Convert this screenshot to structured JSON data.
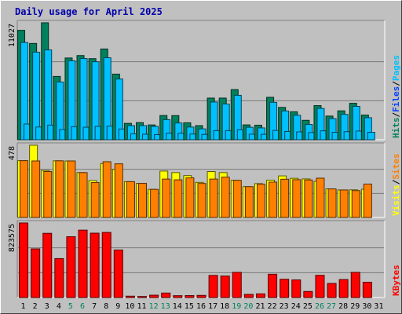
{
  "title": "Daily usage for April 2025",
  "colors": {
    "background": "#c0c0c0",
    "panel": "#c0c0c0",
    "grid": "#7a7a7a",
    "hits": "#00805c",
    "files": "#00c0ff",
    "pages": "#00c0ff",
    "visits": "#ffff00",
    "sites": "#ff8000",
    "kbytes": "#ff0000",
    "label_hits": "#00805c",
    "label_files": "#0040ff",
    "label_pages": "#00c0ff",
    "label_visits": "#ffff00",
    "label_sites": "#ff8000",
    "label_kbytes": "#ff0000",
    "weekend_day": "#00805c",
    "weekday": "#000000",
    "title": "#0000aa"
  },
  "chart_data": {
    "type": "bar",
    "title": "Daily usage for April 2025",
    "categories": [
      "1",
      "2",
      "3",
      "4",
      "5",
      "6",
      "7",
      "8",
      "9",
      "10",
      "11",
      "12",
      "13",
      "14",
      "15",
      "16",
      "17",
      "18",
      "19",
      "20",
      "21",
      "22",
      "23",
      "24",
      "25",
      "26",
      "27",
      "28",
      "29",
      "30",
      "31"
    ],
    "weekend_days": [
      "5",
      "6",
      "12",
      "13",
      "19",
      "20",
      "26",
      "27"
    ],
    "panels": [
      {
        "name": "hits-files-pages",
        "max_label": "11027",
        "ymax": 11027,
        "legend": [
          "Pages",
          "Files",
          "Hits"
        ],
        "series": [
          {
            "name": "Hits",
            "values": [
              10315,
              9077,
              11027,
              5967,
              7705,
              7937,
              7644,
              8556,
              6187,
              1542,
              1615,
              1395,
              2282,
              2273,
              1599,
              1329,
              3926,
              3926,
              4726,
              1400,
              1370,
              3999,
              3045,
              2636,
              1831,
              3216,
              2231,
              2724,
              3436,
              2324,
              null
            ]
          },
          {
            "name": "Files",
            "values": [
              9166,
              8256,
              8467,
              5440,
              7438,
              7655,
              7351,
              7729,
              5723,
              1329,
              1329,
              1256,
              1895,
              1580,
              1196,
              1023,
              3554,
              3367,
              4187,
              1174,
              1115,
              3526,
              2712,
              2305,
              1438,
              2949,
              1990,
              2388,
              3146,
              2075,
              null
            ]
          },
          {
            "name": "Pages",
            "values": [
              1480,
              1200,
              1380,
              960,
              1230,
              1180,
              1260,
              1280,
              1010,
              560,
              520,
              480,
              620,
              610,
              540,
              500,
              860,
              860,
              940,
              520,
              510,
              880,
              780,
              740,
              680,
              840,
              700,
              760,
              820,
              700,
              null
            ]
          }
        ]
      },
      {
        "name": "visits-sites",
        "max_label": "478",
        "ymax": 478,
        "legend": [
          "Sites",
          "Visits"
        ],
        "series": [
          {
            "name": "Visits",
            "values": [
              376,
              478,
              311,
              375,
              374,
              297,
              244,
              357,
              318,
              237,
              226,
              186,
              307,
              297,
              277,
              232,
              304,
              297,
              246,
              204,
              224,
              247,
              275,
              259,
              255,
              239,
              189,
              182,
              183,
              187,
              null
            ]
          },
          {
            "name": "Sites",
            "values": [
              376,
              374,
              304,
              375,
              374,
              297,
              231,
              369,
              355,
              237,
              226,
              186,
              254,
              249,
              262,
              225,
              254,
              267,
              246,
              204,
              220,
              234,
              253,
              250,
              248,
              260,
              189,
              182,
              178,
              221,
              null
            ]
          }
        ]
      },
      {
        "name": "kbytes",
        "max_label": "823575",
        "ymax": 823575,
        "legend": [
          "KBytes"
        ],
        "series": [
          {
            "name": "KBytes",
            "values": [
              823575,
              537090,
              708990,
              429660,
              671420,
              744240,
              710630,
              718960,
              524810,
              14990,
              11260,
              25710,
              49590,
              20320,
              21340,
              23540,
              244030,
              237290,
              277950,
              34570,
              40420,
              257180,
              201670,
              194520,
              66930,
              245010,
              155250,
              198680,
              278010,
              169040,
              null
            ]
          }
        ]
      }
    ]
  }
}
